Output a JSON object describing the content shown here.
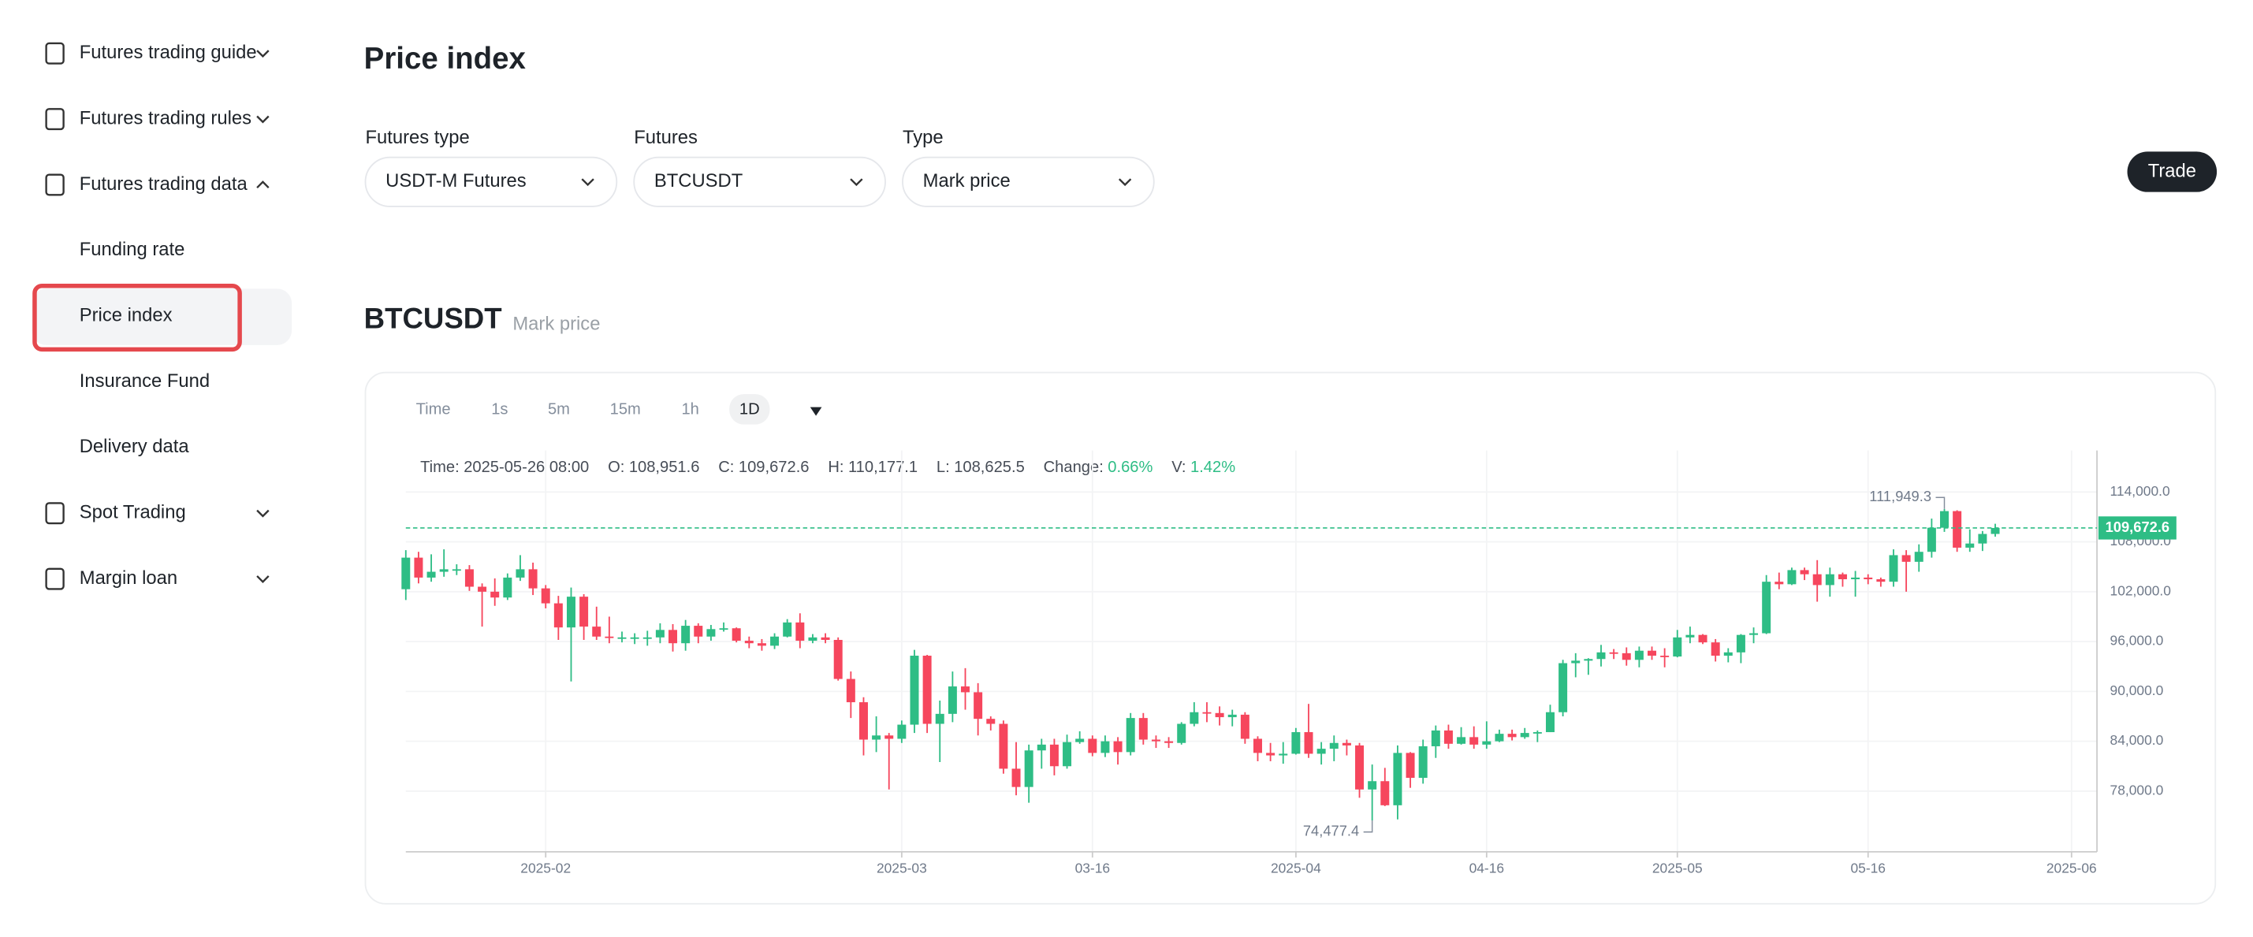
{
  "sidebar": {
    "items": [
      {
        "label": "Futures trading guide",
        "chevron": "down"
      },
      {
        "label": "Futures trading rules",
        "chevron": "down"
      },
      {
        "label": "Futures trading data",
        "chevron": "up"
      },
      {
        "label": "Funding rate",
        "sub": true
      },
      {
        "label": "Price index",
        "sub": true,
        "selected": true
      },
      {
        "label": "Insurance Fund",
        "sub": true
      },
      {
        "label": "Delivery data",
        "sub": true
      },
      {
        "label": "Spot Trading",
        "chevron": "down"
      },
      {
        "label": "Margin loan",
        "chevron": "down"
      }
    ]
  },
  "header": {
    "title": "Price index",
    "button": "Trade"
  },
  "filters": [
    {
      "label": "Futures type",
      "value": "USDT-M Futures"
    },
    {
      "label": "Futures",
      "value": "BTCUSDT"
    },
    {
      "label": "Type",
      "value": "Mark price"
    }
  ],
  "section": {
    "title": "BTCUSDT",
    "subtitle": "Mark price"
  },
  "intervals": {
    "items": [
      "Time",
      "1s",
      "5m",
      "15m",
      "1h",
      "1D"
    ],
    "active": 5
  },
  "info": [
    {
      "key": "Time:",
      "text": "2025-05-26 08:00"
    },
    {
      "key": "O:",
      "text": "108,951.6"
    },
    {
      "key": "C:",
      "text": "109,672.6"
    },
    {
      "key": "H:",
      "text": "110,177.1"
    },
    {
      "key": "L:",
      "text": "108,625.5"
    },
    {
      "key": "Change:",
      "text": "0.66%",
      "color": "#2ebd85"
    },
    {
      "key": "V:",
      "text": "1.42%",
      "color": "#2ebd85"
    }
  ],
  "chart_data": {
    "type": "candlestick",
    "up_color": "#2ebd85",
    "down_color": "#f6465d",
    "grid": true,
    "xlim": [
      "2025-01-21",
      "2025-06-03"
    ],
    "xticks": [
      {
        "value": "2025-02-01",
        "label": "2025-02"
      },
      {
        "value": "2025-03-01",
        "label": "2025-03"
      },
      {
        "value": "2025-03-16",
        "label": "03-16"
      },
      {
        "value": "2025-04-01",
        "label": "2025-04"
      },
      {
        "value": "2025-04-16",
        "label": "04-16"
      },
      {
        "value": "2025-05-01",
        "label": "2025-05"
      },
      {
        "value": "2025-05-16",
        "label": "05-16"
      },
      {
        "value": "2025-06-01",
        "label": "2025-06"
      }
    ],
    "ylim": [
      70700,
      119000
    ],
    "yticks": [
      {
        "value": 78000,
        "label": "78,000.0"
      },
      {
        "value": 84000,
        "label": "84,000.0"
      },
      {
        "value": 90000,
        "label": "90,000.0"
      },
      {
        "value": 96000,
        "label": "96,000.0"
      },
      {
        "value": 102000,
        "label": "102,000.0"
      },
      {
        "value": 108000,
        "label": "108,000.0"
      },
      {
        "value": 114000,
        "label": "114,000.0"
      }
    ],
    "x": [
      "2025-01-21",
      "2025-01-22",
      "2025-01-23",
      "2025-01-24",
      "2025-01-25",
      "2025-01-26",
      "2025-01-27",
      "2025-01-28",
      "2025-01-29",
      "2025-01-30",
      "2025-01-31",
      "2025-02-01",
      "2025-02-02",
      "2025-02-03",
      "2025-02-04",
      "2025-02-05",
      "2025-02-06",
      "2025-02-07",
      "2025-02-08",
      "2025-02-09",
      "2025-02-10",
      "2025-02-11",
      "2025-02-12",
      "2025-02-13",
      "2025-02-14",
      "2025-02-15",
      "2025-02-16",
      "2025-02-17",
      "2025-02-18",
      "2025-02-19",
      "2025-02-20",
      "2025-02-21",
      "2025-02-22",
      "2025-02-23",
      "2025-02-24",
      "2025-02-25",
      "2025-02-26",
      "2025-02-27",
      "2025-02-28",
      "2025-03-01",
      "2025-03-02",
      "2025-03-03",
      "2025-03-04",
      "2025-03-05",
      "2025-03-06",
      "2025-03-07",
      "2025-03-08",
      "2025-03-09",
      "2025-03-10",
      "2025-03-11",
      "2025-03-12",
      "2025-03-13",
      "2025-03-14",
      "2025-03-15",
      "2025-03-16",
      "2025-03-17",
      "2025-03-18",
      "2025-03-19",
      "2025-03-20",
      "2025-03-21",
      "2025-03-22",
      "2025-03-23",
      "2025-03-24",
      "2025-03-25",
      "2025-03-26",
      "2025-03-27",
      "2025-03-28",
      "2025-03-29",
      "2025-03-30",
      "2025-03-31",
      "2025-04-01",
      "2025-04-02",
      "2025-04-03",
      "2025-04-04",
      "2025-04-05",
      "2025-04-06",
      "2025-04-07",
      "2025-04-08",
      "2025-04-09",
      "2025-04-10",
      "2025-04-11",
      "2025-04-12",
      "2025-04-13",
      "2025-04-14",
      "2025-04-15",
      "2025-04-16",
      "2025-04-17",
      "2025-04-18",
      "2025-04-19",
      "2025-04-20",
      "2025-04-21",
      "2025-04-22",
      "2025-04-23",
      "2025-04-24",
      "2025-04-25",
      "2025-04-26",
      "2025-04-27",
      "2025-04-28",
      "2025-04-29",
      "2025-04-30",
      "2025-05-01",
      "2025-05-02",
      "2025-05-03",
      "2025-05-04",
      "2025-05-05",
      "2025-05-06",
      "2025-05-07",
      "2025-05-08",
      "2025-05-09",
      "2025-05-10",
      "2025-05-11",
      "2025-05-12",
      "2025-05-13",
      "2025-05-14",
      "2025-05-15",
      "2025-05-16",
      "2025-05-17",
      "2025-05-18",
      "2025-05-19",
      "2025-05-20",
      "2025-05-21",
      "2025-05-22",
      "2025-05-23",
      "2025-05-24",
      "2025-05-25",
      "2025-05-26"
    ],
    "open": [
      102300,
      106100,
      103700,
      104400,
      104700,
      104700,
      102600,
      102000,
      101300,
      103700,
      104700,
      102400,
      100600,
      97700,
      101400,
      97800,
      96600,
      96500,
      96500,
      96500,
      96500,
      97400,
      95800,
      97900,
      96600,
      97500,
      97600,
      96100,
      95800,
      95500,
      96600,
      98300,
      96100,
      96500,
      96200,
      91500,
      88700,
      84200,
      84700,
      84300,
      86000,
      94300,
      86100,
      87300,
      90600,
      89900,
      86700,
      86100,
      80700,
      78500,
      82900,
      83600,
      81000,
      83900,
      84300,
      82600,
      84000,
      82700,
      86800,
      84200,
      84000,
      83800,
      86100,
      87500,
      87400,
      86900,
      87200,
      84300,
      82600,
      82300,
      82500,
      85100,
      82500,
      83100,
      83800,
      83500,
      78200,
      79200,
      76300,
      82600,
      79600,
      83400,
      85300,
      83700,
      84500,
      83600,
      84000,
      84900,
      84500,
      85000,
      85100,
      87500,
      93400,
      93700,
      93900,
      94700,
      94600,
      93800,
      94900,
      94300,
      94200,
      96500,
      96800,
      95900,
      94300,
      94700,
      96800,
      97000,
      103200,
      102900,
      104600,
      104100,
      102800,
      104100,
      103500,
      103700,
      103500,
      103200,
      106400,
      105600,
      106800,
      109700,
      111700,
      107300,
      107800,
      108951.6
    ],
    "high": [
      107000,
      106800,
      106500,
      107100,
      105300,
      105200,
      103000,
      103600,
      104200,
      106400,
      105500,
      102800,
      101500,
      102500,
      101700,
      100200,
      99000,
      97200,
      97000,
      97300,
      98200,
      98100,
      98600,
      98200,
      98000,
      98300,
      97700,
      96600,
      96300,
      97000,
      98700,
      99400,
      96900,
      97000,
      96500,
      92400,
      89300,
      87000,
      85000,
      86500,
      95000,
      94400,
      88900,
      92400,
      92800,
      91000,
      87000,
      86500,
      83900,
      83600,
      84300,
      84300,
      84800,
      85200,
      84700,
      84700,
      84500,
      87400,
      87400,
      84700,
      84500,
      86300,
      88700,
      88700,
      88200,
      87800,
      87500,
      84600,
      83800,
      83900,
      85600,
      88500,
      83900,
      84700,
      84200,
      83800,
      81200,
      80800,
      83500,
      82700,
      84200,
      85900,
      86000,
      85700,
      85800,
      86400,
      85400,
      85400,
      85600,
      85300,
      88400,
      93800,
      94600,
      94000,
      95600,
      95100,
      95300,
      95400,
      95400,
      95200,
      97400,
      97800,
      96900,
      96300,
      95200,
      96900,
      97700,
      104000,
      104300,
      104900,
      104900,
      105800,
      104900,
      104300,
      104500,
      104100,
      103700,
      107100,
      107000,
      107700,
      110800,
      111949.3,
      111800,
      109500,
      109300,
      110177.1
    ],
    "low": [
      101000,
      103000,
      103200,
      103800,
      104000,
      102100,
      97800,
      100300,
      101000,
      103300,
      101600,
      100000,
      96200,
      91200,
      96200,
      96200,
      95800,
      95900,
      95700,
      95500,
      95800,
      94800,
      94900,
      95800,
      96100,
      97200,
      95900,
      95200,
      94900,
      95100,
      96500,
      95200,
      95800,
      95800,
      91300,
      86800,
      82300,
      82700,
      78200,
      83800,
      85000,
      85000,
      81500,
      86300,
      87800,
      84700,
      85300,
      80100,
      77500,
      76600,
      80700,
      79900,
      80700,
      83700,
      82200,
      82100,
      81200,
      82300,
      83600,
      83200,
      83200,
      83600,
      85800,
      86300,
      85900,
      85800,
      83700,
      81600,
      81600,
      81300,
      82400,
      82000,
      81200,
      81600,
      82300,
      77200,
      74477.4,
      76200,
      74600,
      78400,
      78900,
      82000,
      83100,
      83600,
      83100,
      83100,
      83900,
      84100,
      84300,
      83900,
      85100,
      87000,
      91700,
      92000,
      93000,
      93900,
      93100,
      92900,
      93800,
      92900,
      94100,
      95800,
      95700,
      93600,
      93500,
      93400,
      95800,
      96900,
      102300,
      102800,
      103400,
      100800,
      101400,
      102600,
      101400,
      102900,
      102600,
      102600,
      102000,
      104400,
      106100,
      109200,
      106800,
      106800,
      106900,
      108625.5
    ],
    "close": [
      106100,
      103700,
      104400,
      104700,
      104700,
      102600,
      102000,
      101300,
      103700,
      104700,
      102400,
      100600,
      97700,
      101400,
      97800,
      96600,
      96500,
      96500,
      96500,
      96500,
      97400,
      95800,
      97900,
      96600,
      97500,
      97600,
      96100,
      95800,
      95500,
      96600,
      98300,
      96100,
      96500,
      96200,
      91500,
      88700,
      84200,
      84700,
      84300,
      86000,
      94300,
      86100,
      87300,
      90600,
      89900,
      86700,
      86100,
      80700,
      78500,
      82900,
      83600,
      81000,
      83900,
      84300,
      82600,
      84000,
      82700,
      86800,
      84200,
      84000,
      83800,
      86100,
      87500,
      87400,
      86900,
      87200,
      84300,
      82600,
      82300,
      82500,
      85100,
      82500,
      83100,
      83800,
      83500,
      78200,
      79200,
      76300,
      82600,
      79600,
      83400,
      85300,
      83700,
      84500,
      83600,
      84000,
      84900,
      84500,
      85000,
      85100,
      87500,
      93400,
      93700,
      93900,
      94700,
      94600,
      93800,
      94900,
      94300,
      94200,
      96500,
      96800,
      95900,
      94300,
      94700,
      96800,
      97000,
      103200,
      102900,
      104600,
      104100,
      102800,
      104100,
      103500,
      103700,
      103500,
      103200,
      106400,
      105600,
      106800,
      109700,
      111700,
      107300,
      107800,
      108951.6,
      109672.6
    ],
    "annotations": [
      {
        "x": "2025-05-22",
        "value": 111949.3,
        "text": "111,949.3"
      },
      {
        "x": "2025-04-07",
        "value": 74477.4,
        "text": "74,477.4"
      }
    ],
    "last_price": {
      "value": 109672.6,
      "label": "109,672.6"
    }
  }
}
